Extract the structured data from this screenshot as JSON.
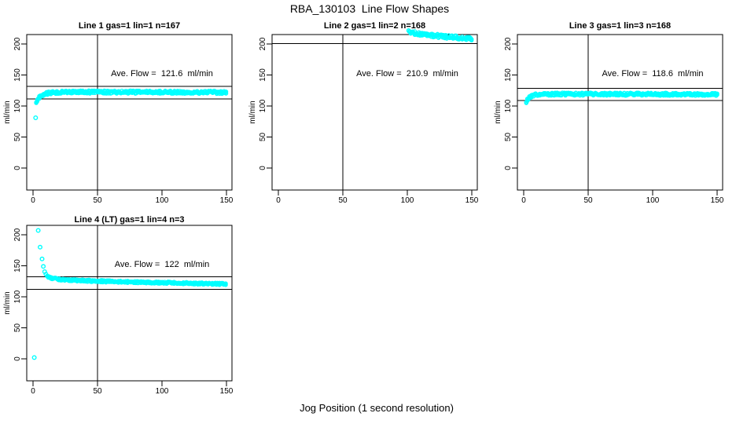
{
  "figure": {
    "main_title": "RBA_130103  Line Flow Shapes",
    "x_axis_label": "Jog Position (1 second resolution)",
    "point_color": "#00FFFF",
    "axis_color": "#000000",
    "background_color": "#FFFFFF"
  },
  "chart_data": [
    {
      "type": "scatter",
      "title": "Line 1 gas=1 lin=1 n=167",
      "line": 1,
      "gas": 1,
      "lin": 1,
      "n": 167,
      "annotation": "Ave. Flow =  121.6  ml/min",
      "ave_flow_label": "Ave. Flow =",
      "ave_flow_value": "121.6",
      "ave_flow_units": "ml/min",
      "mean_flow": 121.6,
      "ref_lines": [
        111.6,
        131.6
      ],
      "vline_x": 50,
      "x_ticks": [
        0,
        50,
        100,
        150
      ],
      "y_ticks": [
        0,
        50,
        100,
        150,
        200
      ],
      "ylabel": "ml/min",
      "xlim": [
        0,
        150
      ],
      "ylim": [
        0,
        215
      ],
      "row": 0,
      "col": 0,
      "band_halfwidth": 2.3,
      "outliers": [
        [
          2,
          81
        ]
      ],
      "profile": [
        [
          2.5,
          104
        ],
        [
          3,
          107
        ],
        [
          4,
          111
        ],
        [
          5,
          114
        ],
        [
          6,
          116
        ],
        [
          7,
          117.5
        ],
        [
          8,
          118.6
        ],
        [
          10,
          120
        ],
        [
          13,
          121.2
        ],
        [
          17,
          121.8
        ],
        [
          25,
          122.3
        ],
        [
          40,
          122.5
        ],
        [
          70,
          122.4
        ],
        [
          100,
          122.3
        ],
        [
          150,
          122
        ]
      ]
    },
    {
      "type": "scatter",
      "title": "Line 2 gas=1 lin=2 n=168",
      "line": 2,
      "gas": 1,
      "lin": 2,
      "n": 168,
      "annotation": "Ave. Flow =  210.9  ml/min",
      "ave_flow_label": "Ave. Flow =",
      "ave_flow_value": "210.9",
      "ave_flow_units": "ml/min",
      "mean_flow": 210.9,
      "ref_lines": [
        200.9,
        220.9
      ],
      "vline_x": 50,
      "x_ticks": [
        0,
        50,
        100,
        150
      ],
      "y_ticks": [
        0,
        50,
        100,
        150,
        200
      ],
      "ylabel": "ml/min",
      "xlim": [
        0,
        150
      ],
      "ylim": [
        0,
        215
      ],
      "row": 0,
      "col": 1,
      "band_halfwidth": 3.0,
      "outliers": [],
      "profile": [
        [
          101,
          219
        ],
        [
          108,
          217
        ],
        [
          116,
          214.8
        ],
        [
          124,
          213
        ],
        [
          132,
          211.5
        ],
        [
          140,
          210
        ],
        [
          150,
          208.5
        ]
      ]
    },
    {
      "type": "scatter",
      "title": "Line 3 gas=1 lin=3 n=168",
      "line": 3,
      "gas": 1,
      "lin": 3,
      "n": 168,
      "annotation": "Ave. Flow =  118.6  ml/min",
      "ave_flow_label": "Ave. Flow =",
      "ave_flow_value": "118.6",
      "ave_flow_units": "ml/min",
      "mean_flow": 118.6,
      "ref_lines": [
        108.6,
        128.6
      ],
      "vline_x": 50,
      "x_ticks": [
        0,
        50,
        100,
        150
      ],
      "y_ticks": [
        0,
        50,
        100,
        150,
        200
      ],
      "ylabel": "ml/min",
      "xlim": [
        0,
        150
      ],
      "ylim": [
        0,
        215
      ],
      "row": 0,
      "col": 2,
      "band_halfwidth": 2.2,
      "outliers": [],
      "profile": [
        [
          2,
          107
        ],
        [
          3,
          110
        ],
        [
          4,
          112.5
        ],
        [
          5,
          114.5
        ],
        [
          6,
          116
        ],
        [
          8,
          117.6
        ],
        [
          10,
          118.4
        ],
        [
          15,
          118.9
        ],
        [
          25,
          119.2
        ],
        [
          50,
          119.2
        ],
        [
          100,
          119
        ],
        [
          150,
          118.6
        ]
      ]
    },
    {
      "type": "scatter",
      "title": "Line 4 (LT) gas=1 lin=4 n=3",
      "line": 4,
      "gas": 1,
      "lin": 4,
      "n": 3,
      "annotation": "Ave. Flow =  122  ml/min",
      "ave_flow_label": "Ave. Flow =",
      "ave_flow_value": "122",
      "ave_flow_units": "ml/min",
      "mean_flow": 122,
      "ref_lines": [
        112,
        132
      ],
      "vline_x": 50,
      "x_ticks": [
        0,
        50,
        100,
        150
      ],
      "y_ticks": [
        0,
        50,
        100,
        150,
        200
      ],
      "ylabel": "ml/min",
      "xlim": [
        0,
        150
      ],
      "ylim": [
        0,
        215
      ],
      "row": 1,
      "col": 0,
      "band_halfwidth": 1.6,
      "outliers": [
        [
          1,
          2
        ],
        [
          4,
          207
        ],
        [
          5.5,
          180
        ],
        [
          7,
          161
        ],
        [
          8,
          149
        ],
        [
          9,
          140.5
        ],
        [
          10,
          136.5
        ]
      ],
      "profile": [
        [
          11,
          133.5
        ],
        [
          12,
          132
        ],
        [
          13,
          131
        ],
        [
          15,
          129.8
        ],
        [
          18,
          128.8
        ],
        [
          22,
          128
        ],
        [
          27,
          127.2
        ],
        [
          35,
          126.4
        ],
        [
          45,
          125.6
        ],
        [
          55,
          125
        ],
        [
          70,
          124.2
        ],
        [
          85,
          123.4
        ],
        [
          100,
          122.8
        ],
        [
          115,
          122.2
        ],
        [
          130,
          121.5
        ],
        [
          150,
          120.5
        ]
      ]
    }
  ]
}
